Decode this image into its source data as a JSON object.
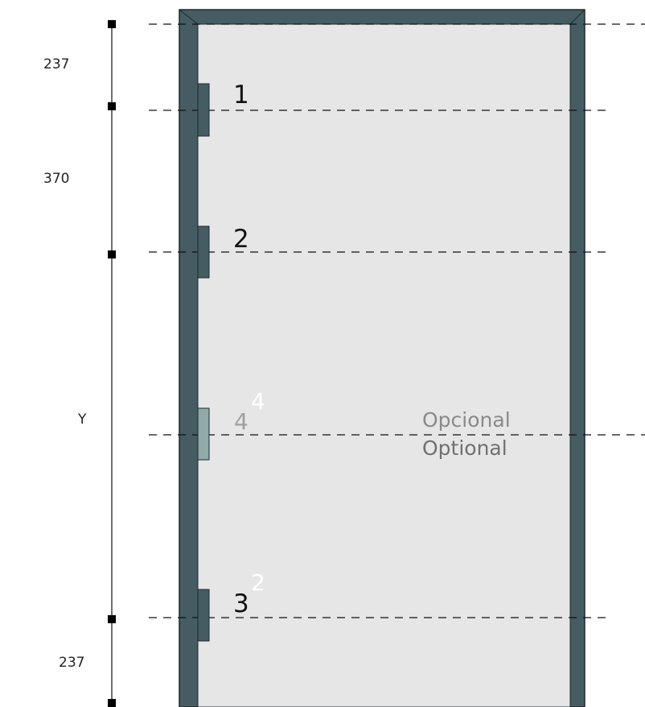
{
  "dimensions": {
    "top": "237",
    "between_1_2": "370",
    "middle": "Y",
    "bottom": "237"
  },
  "hinges": [
    {
      "number": "1"
    },
    {
      "number": "2"
    },
    {
      "number": "4",
      "superscript": "4",
      "optional": true
    },
    {
      "number": "3",
      "superscript": "2"
    }
  ],
  "optional_label": {
    "line1": "Opcional",
    "line2": "Optional"
  },
  "colors": {
    "frame": "#455c62",
    "door": "#e6e6e6",
    "hinge": "#455c62",
    "optional_hinge": "#8faaa9",
    "optional_text": "#8a8a8a",
    "optional_text_dark": "#707070",
    "optional_number": "#a0a0a0"
  }
}
